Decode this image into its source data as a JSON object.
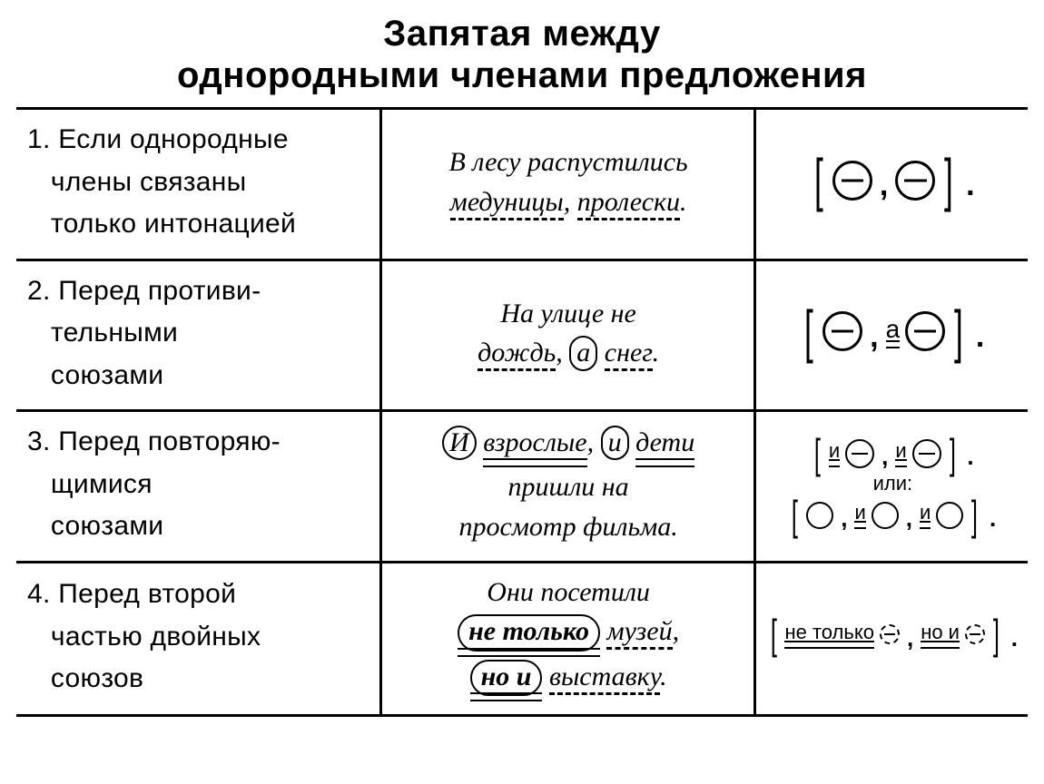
{
  "title_line1": "Запятая между",
  "title_line2": "однородными членами предложения",
  "rows": [
    {
      "num": "1.",
      "rule_l1": "Если однородные",
      "rule_l2": "члены связаны",
      "rule_l3": "только интонацией",
      "ex_plain": "В лесу распустились",
      "ex_w1": "медуницы",
      "ex_sep": ",",
      "ex_w2": "пролески",
      "ex_end": "."
    },
    {
      "num": "2.",
      "rule_l1": "Перед противи-",
      "rule_l2": "тельными",
      "rule_l3": "союзами",
      "ex_plain": "На улице не",
      "ex_w1": "дождь",
      "ex_sep": ",",
      "ex_conj": "а",
      "ex_w2": "снег",
      "ex_end": ".",
      "scheme_conj": "а"
    },
    {
      "num": "3.",
      "rule_l1": "Перед повторяю-",
      "rule_l2": "щимися",
      "rule_l3": "союзами",
      "ex_conj1": "И",
      "ex_w1": "взрослые",
      "ex_sep": ",",
      "ex_conj2": "и",
      "ex_w2": "дети",
      "ex_l2": "пришли на",
      "ex_l3": "просмотр фильма.",
      "scheme_conj": "и",
      "or_label": "или:"
    },
    {
      "num": "4.",
      "rule_l1": "Перед второй",
      "rule_l2": "частью двойных",
      "rule_l3": "союзов",
      "ex_l1": "Они посетили",
      "ex_oval1": "не только",
      "ex_w1": "музей",
      "ex_sep": ",",
      "ex_oval2": "но и",
      "ex_w2": "выставку",
      "ex_end": ".",
      "scheme_t1": "не только",
      "scheme_t2": "но и"
    }
  ]
}
